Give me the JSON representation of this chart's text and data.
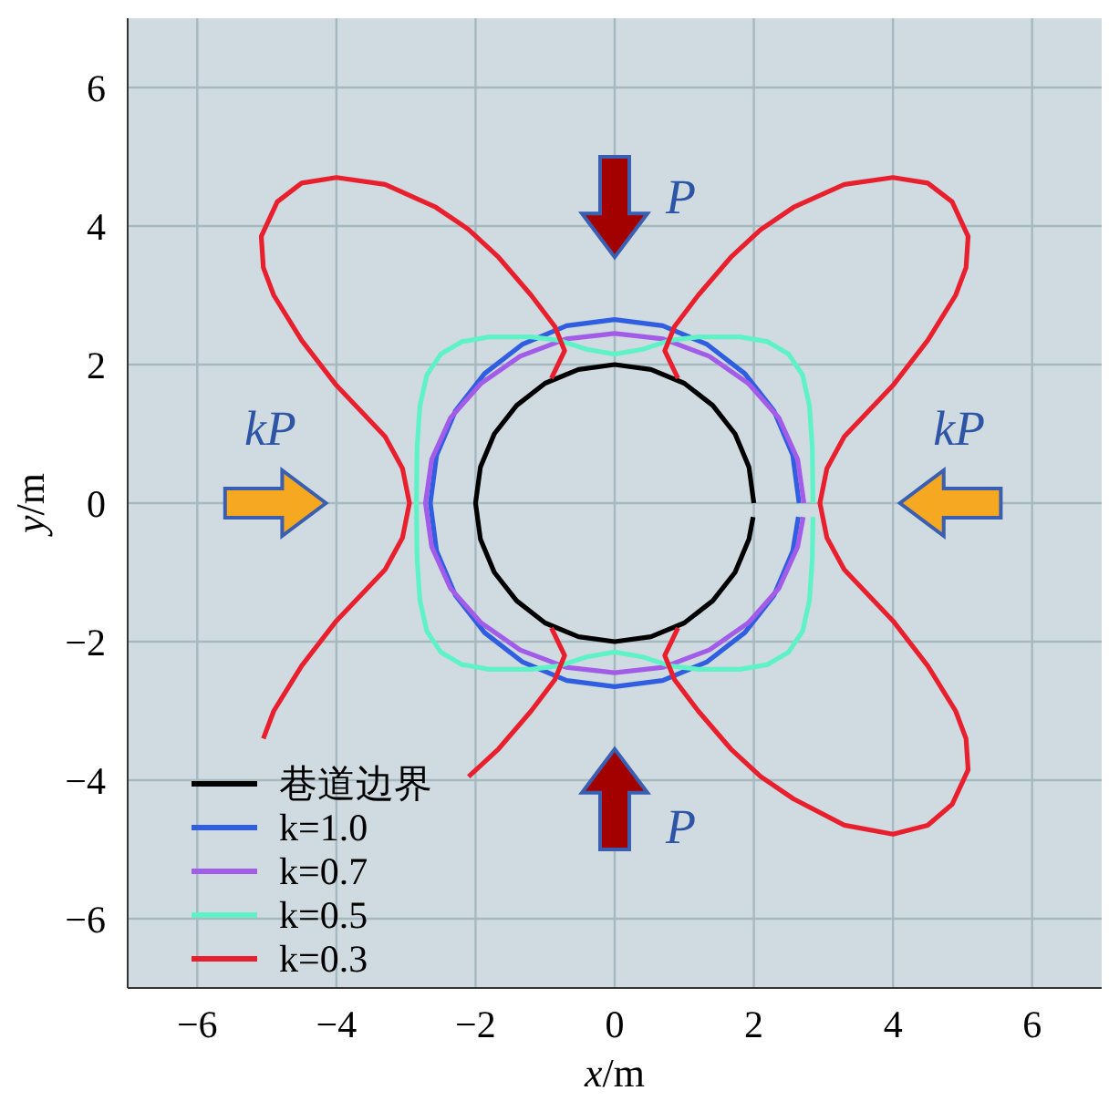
{
  "chart_data": {
    "type": "line",
    "xlabel": "x/m",
    "ylabel": "y/m",
    "xlim": [
      -7,
      7
    ],
    "ylim": [
      -7,
      7
    ],
    "xticks": [
      -6,
      -4,
      -2,
      0,
      2,
      4,
      6
    ],
    "yticks": [
      -6,
      -4,
      -2,
      0,
      2,
      4,
      6
    ],
    "grid": true,
    "legend": "bottom left",
    "marker": "none",
    "line_style": "solid",
    "annotations": [
      "P",
      "P",
      "kP",
      "kP"
    ],
    "series": [
      {
        "name": "巷道边界",
        "color": "#000000",
        "x": [
          2,
          1.93,
          1.73,
          1.41,
          1,
          0.52,
          0,
          -0.52,
          -1,
          -1.41,
          -1.73,
          -1.93,
          -2,
          -1.93,
          -1.73,
          -1.41,
          -1,
          -0.52,
          0,
          0.52,
          1,
          1.41,
          1.73,
          1.93,
          1.99
        ],
        "values": [
          0,
          0.52,
          1,
          1.41,
          1.73,
          1.93,
          2,
          1.93,
          1.73,
          1.41,
          1,
          0.52,
          0,
          -0.52,
          -1,
          -1.41,
          -1.73,
          -1.93,
          -2,
          -1.93,
          -1.73,
          -1.41,
          -1,
          -0.52,
          -0.2
        ]
      },
      {
        "name": "k=1.0",
        "color": "#2f5ee0",
        "x": [
          2.65,
          2.56,
          2.29,
          1.87,
          1.33,
          0.69,
          0,
          -0.69,
          -1.33,
          -1.87,
          -2.29,
          -2.56,
          -2.65,
          -2.56,
          -2.29,
          -1.87,
          -1.33,
          -0.69,
          0,
          0.69,
          1.33,
          1.87,
          2.29,
          2.56,
          2.64
        ],
        "values": [
          0,
          0.69,
          1.33,
          1.87,
          2.29,
          2.56,
          2.65,
          2.56,
          2.29,
          1.87,
          1.33,
          0.69,
          0,
          -0.69,
          -1.33,
          -1.87,
          -2.29,
          -2.56,
          -2.65,
          -2.56,
          -2.29,
          -1.87,
          -1.33,
          -0.69,
          -0.2
        ]
      },
      {
        "name": "k=0.7",
        "color": "#a25ce8",
        "x": [
          2.72,
          2.63,
          2.36,
          1.92,
          1.36,
          0.7,
          0,
          -0.7,
          -1.36,
          -1.92,
          -2.36,
          -2.63,
          -2.72,
          -2.63,
          -2.36,
          -1.92,
          -1.36,
          -0.7,
          0,
          0.7,
          1.36,
          1.92,
          2.36,
          2.63,
          2.71
        ],
        "values": [
          0,
          0.63,
          1.23,
          1.73,
          2.12,
          2.37,
          2.45,
          2.37,
          2.12,
          1.73,
          1.23,
          0.63,
          0,
          -0.63,
          -1.23,
          -1.73,
          -2.12,
          -2.37,
          -2.45,
          -2.37,
          -2.12,
          -1.73,
          -1.23,
          -0.63,
          -0.2
        ]
      },
      {
        "name": "k=0.5",
        "color": "#5ff2c6",
        "x": [
          2.85,
          2.84,
          2.8,
          2.7,
          2.5,
          2.2,
          1.8,
          1.2,
          0.8,
          0.4,
          0,
          -0.4,
          -0.8,
          -1.2,
          -1.8,
          -2.2,
          -2.5,
          -2.7,
          -2.8,
          -2.84,
          -2.85,
          -2.84,
          -2.8,
          -2.7,
          -2.5,
          -2.2,
          -1.8,
          -1.2,
          -0.8,
          -0.4,
          0,
          0.4,
          0.8,
          1.2,
          1.8,
          2.2,
          2.5,
          2.7,
          2.8,
          2.84,
          2.85
        ],
        "values": [
          0,
          0.8,
          1.4,
          1.85,
          2.15,
          2.33,
          2.4,
          2.4,
          2.35,
          2.22,
          2.15,
          2.22,
          2.35,
          2.4,
          2.4,
          2.33,
          2.15,
          1.85,
          1.4,
          0.8,
          0,
          -0.8,
          -1.4,
          -1.85,
          -2.15,
          -2.33,
          -2.4,
          -2.4,
          -2.35,
          -2.22,
          -2.15,
          -2.22,
          -2.35,
          -2.4,
          -2.4,
          -2.33,
          -2.15,
          -1.85,
          -1.4,
          -0.8,
          -0.2
        ]
      },
      {
        "name": "k=0.3",
        "color": "#e8202e",
        "x": [
          -0.91,
          -0.72,
          -0.86,
          -1.2,
          -1.67,
          -2.1,
          -2.57,
          -3.3,
          -4.0,
          -4.5,
          -4.85,
          -5.08,
          -5.05,
          -4.9,
          -4.5,
          -4.0,
          -3.3,
          -3.05,
          -2.95,
          -3.05,
          -3.3,
          -4.0,
          -4.5,
          -4.9,
          -5.05,
          null,
          -2.1,
          -1.67,
          -1.2,
          -0.86,
          -0.72,
          -0.91,
          null,
          0.91,
          0.72,
          0.86,
          1.2,
          1.67,
          2.1,
          2.57,
          3.3,
          4.0,
          4.5,
          4.85,
          5.08,
          5.05,
          4.9,
          4.5,
          4.0,
          3.3,
          3.05,
          2.95,
          3.05,
          3.3,
          4.0,
          4.5,
          4.9,
          5.05,
          5.08,
          4.85,
          4.5,
          4.0,
          3.3,
          2.57,
          2.1,
          1.67,
          1.2,
          0.86,
          0.72,
          0.91
        ],
        "values": [
          1.8,
          2.2,
          2.55,
          3.0,
          3.55,
          3.95,
          4.27,
          4.6,
          4.7,
          4.62,
          4.35,
          3.85,
          3.4,
          3.0,
          2.35,
          1.7,
          0.96,
          0.5,
          0,
          -0.5,
          -0.96,
          -1.7,
          -2.35,
          -3.0,
          -3.4,
          null,
          -3.95,
          -3.55,
          -3.0,
          -2.55,
          -2.2,
          -1.8,
          null,
          1.8,
          2.2,
          2.55,
          3.0,
          3.55,
          3.95,
          4.27,
          4.6,
          4.7,
          4.62,
          4.35,
          3.85,
          3.4,
          3.0,
          2.35,
          1.7,
          0.96,
          0.5,
          0,
          -0.5,
          -0.96,
          -1.7,
          -2.35,
          -3.0,
          -3.4,
          -3.85,
          -4.35,
          -4.65,
          -4.78,
          -4.65,
          -4.27,
          -3.95,
          -3.55,
          -3.0,
          -2.55,
          -2.2,
          -1.8
        ]
      }
    ]
  }
}
